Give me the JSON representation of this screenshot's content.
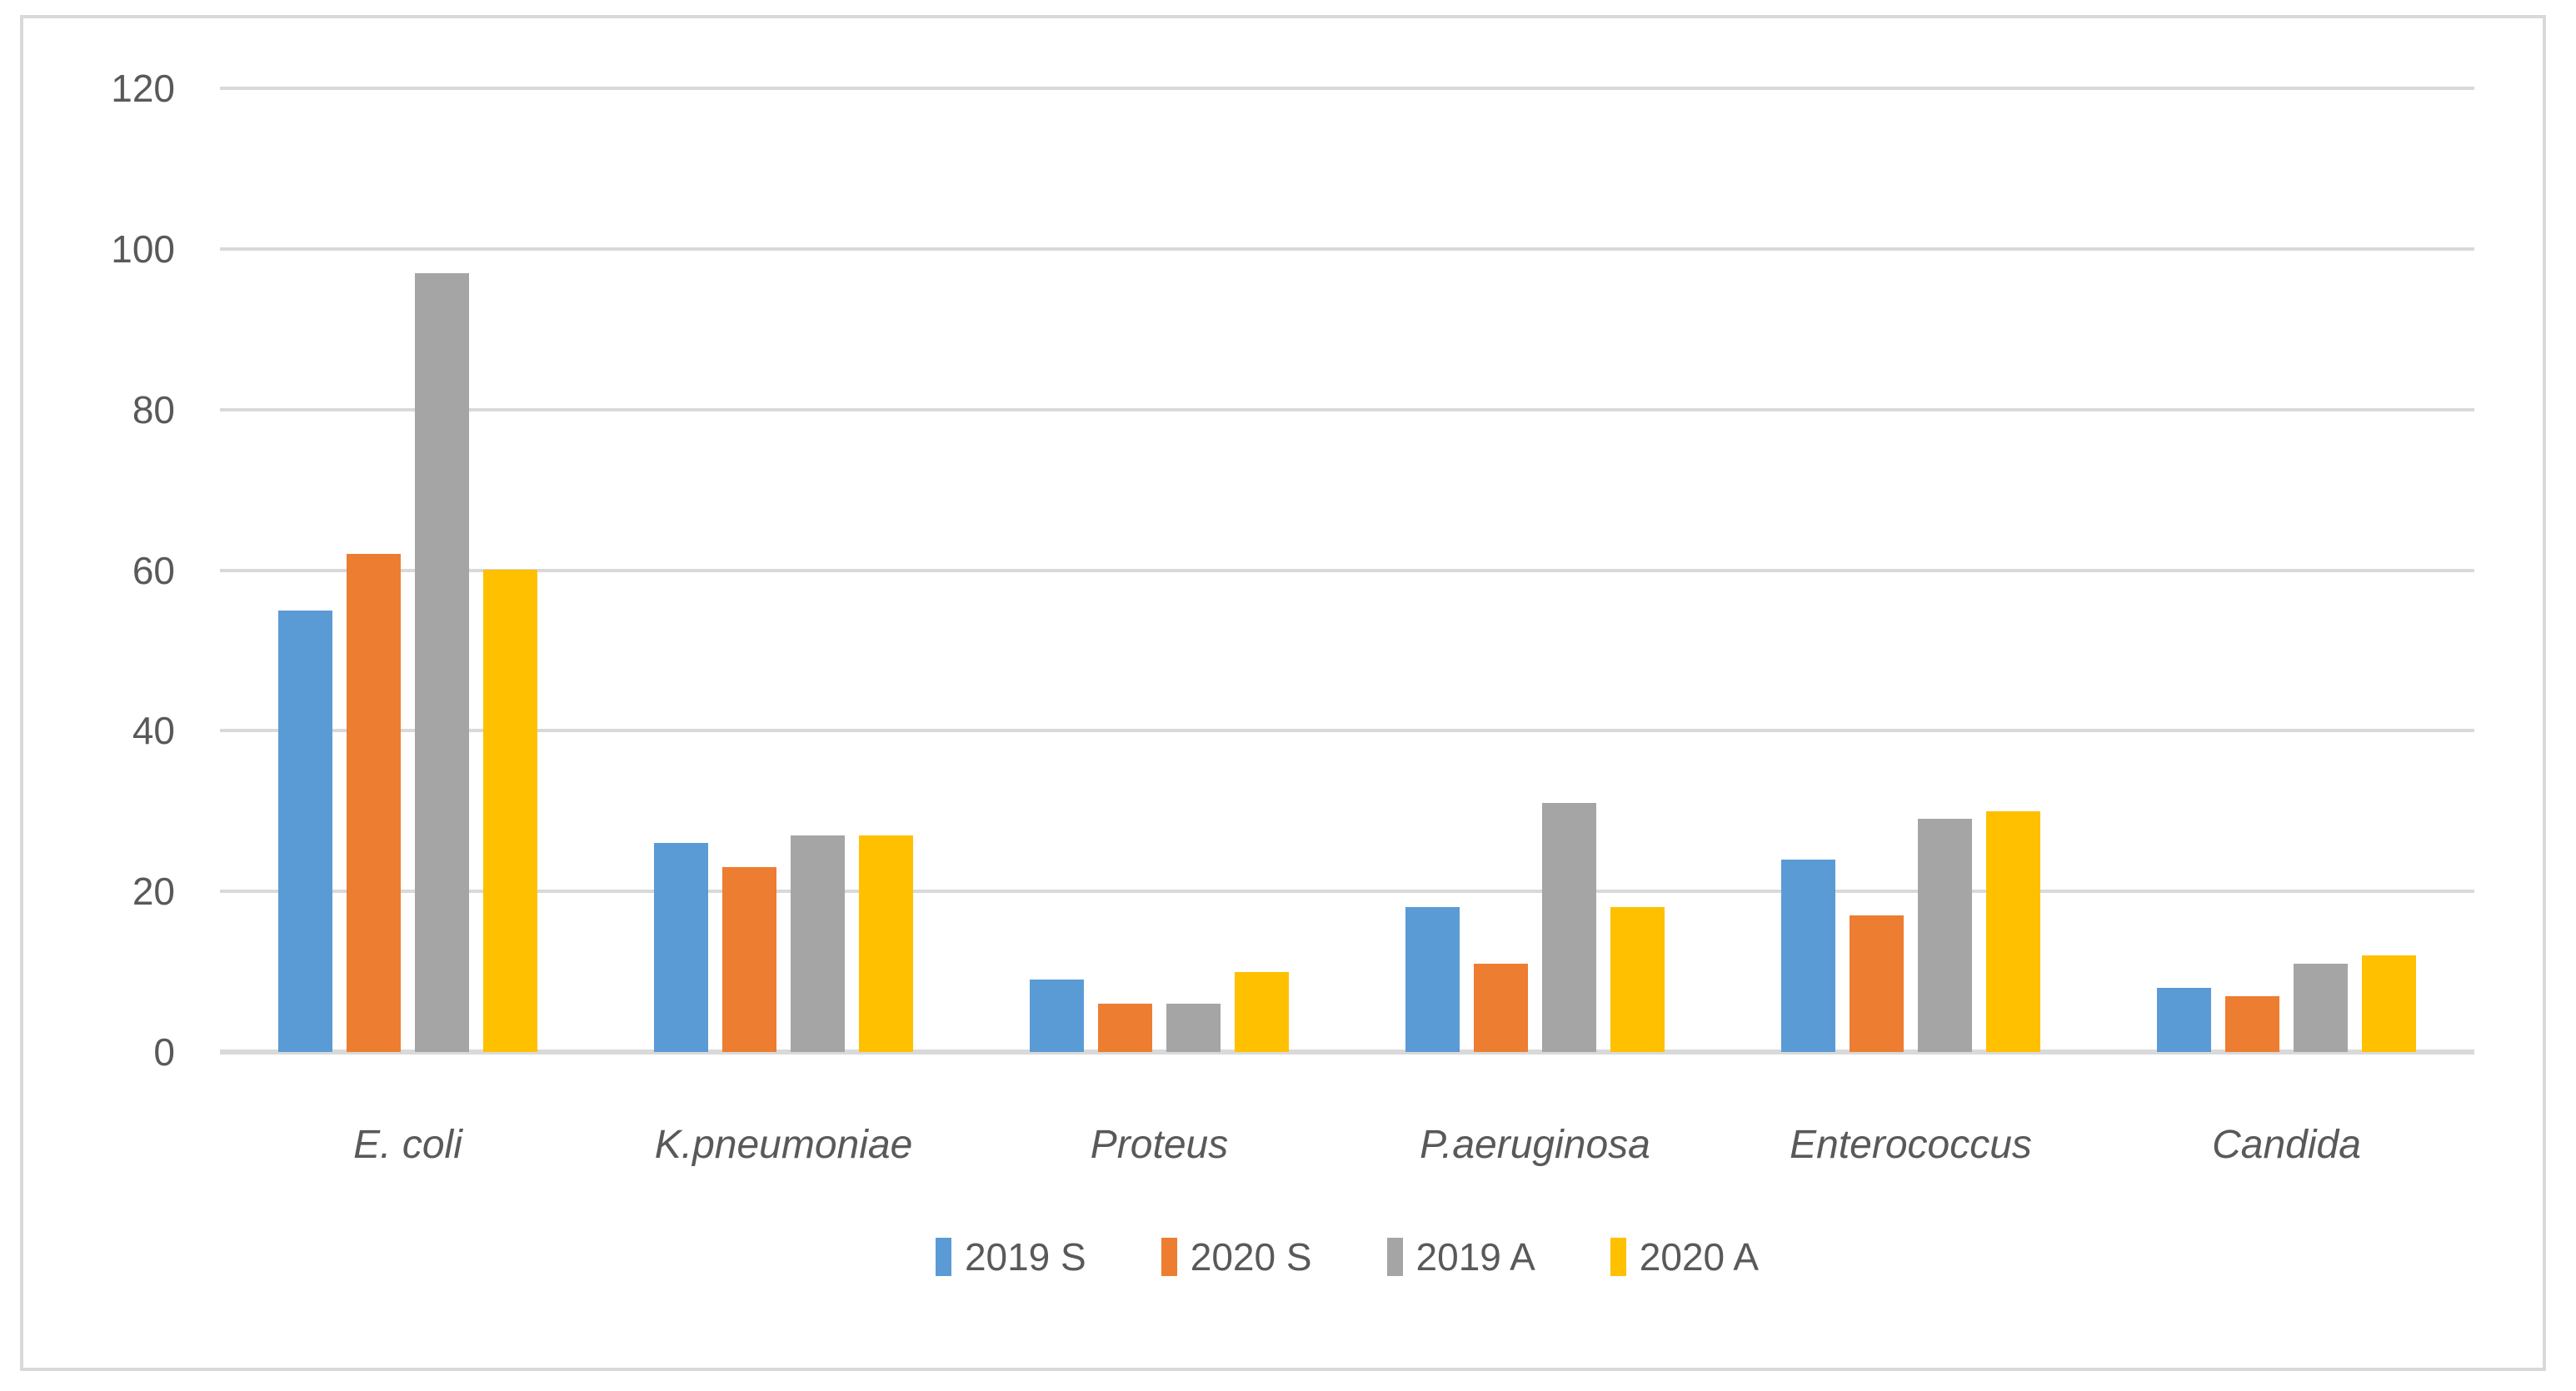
{
  "chart_data": {
    "type": "bar",
    "title": "",
    "xlabel": "",
    "ylabel": "",
    "categories": [
      "E. coli",
      "K.pneumoniae",
      "Proteus",
      "P.aeruginosa",
      "Enterococcus",
      "Candida"
    ],
    "series": [
      {
        "name": "2019 S",
        "color": "#5B9BD5",
        "values": [
          55,
          26,
          9,
          18,
          24,
          8
        ]
      },
      {
        "name": "2020 S",
        "color": "#ED7D31",
        "values": [
          62,
          23,
          6,
          11,
          17,
          7
        ]
      },
      {
        "name": "2019 A",
        "color": "#A5A5A5",
        "values": [
          97,
          27,
          6,
          31,
          29,
          11
        ]
      },
      {
        "name": "2020 A",
        "color": "#FFC000",
        "values": [
          60,
          27,
          10,
          18,
          30,
          12
        ]
      }
    ],
    "ylim": [
      0,
      120
    ],
    "yticks": [
      0,
      20,
      40,
      60,
      80,
      100,
      120
    ],
    "grid": true,
    "gridline_color": "#D9D9D9",
    "text_color": "#595959",
    "legend_position": "bottom"
  }
}
